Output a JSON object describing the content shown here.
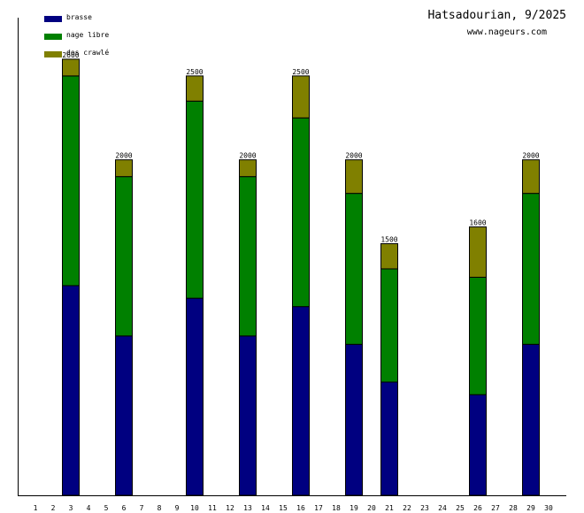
{
  "title": "Hatsadourian, 9/2025",
  "subtitle": "www.nageurs.com",
  "chart_data": {
    "type": "bar",
    "stacked": true,
    "title": "Hatsadourian, 9/2025",
    "xlabel": "",
    "ylabel": "",
    "ylim": [
      0,
      2900
    ],
    "categories": [
      "1",
      "2",
      "3",
      "4",
      "5",
      "6",
      "7",
      "8",
      "9",
      "10",
      "11",
      "12",
      "13",
      "14",
      "15",
      "16",
      "17",
      "18",
      "19",
      "20",
      "21",
      "22",
      "23",
      "24",
      "25",
      "26",
      "27",
      "28",
      "29",
      "30"
    ],
    "series": [
      {
        "name": "brasse",
        "color": "#000080",
        "values": [
          0,
          0,
          1250,
          0,
          0,
          950,
          0,
          0,
          0,
          1175,
          0,
          0,
          950,
          0,
          0,
          1125,
          0,
          0,
          900,
          0,
          675,
          0,
          0,
          0,
          0,
          600,
          0,
          0,
          900,
          0
        ]
      },
      {
        "name": "nage libre",
        "color": "#008000",
        "values": [
          0,
          0,
          1250,
          0,
          0,
          950,
          0,
          0,
          0,
          1175,
          0,
          0,
          950,
          0,
          0,
          1125,
          0,
          0,
          900,
          0,
          675,
          0,
          0,
          0,
          0,
          700,
          0,
          0,
          900,
          0
        ]
      },
      {
        "name": "dos crawlé",
        "color": "#808000",
        "values": [
          0,
          0,
          100,
          0,
          0,
          100,
          0,
          0,
          0,
          150,
          0,
          0,
          100,
          0,
          0,
          250,
          0,
          0,
          200,
          0,
          150,
          0,
          0,
          0,
          0,
          300,
          0,
          0,
          200,
          0
        ]
      }
    ],
    "totals": [
      0,
      0,
      2600,
      0,
      0,
      2000,
      0,
      0,
      0,
      2500,
      0,
      0,
      2000,
      0,
      0,
      2500,
      0,
      0,
      2000,
      0,
      1500,
      0,
      0,
      0,
      0,
      1600,
      0,
      0,
      2000,
      0
    ],
    "legend_position": "top-left",
    "grid": false
  }
}
